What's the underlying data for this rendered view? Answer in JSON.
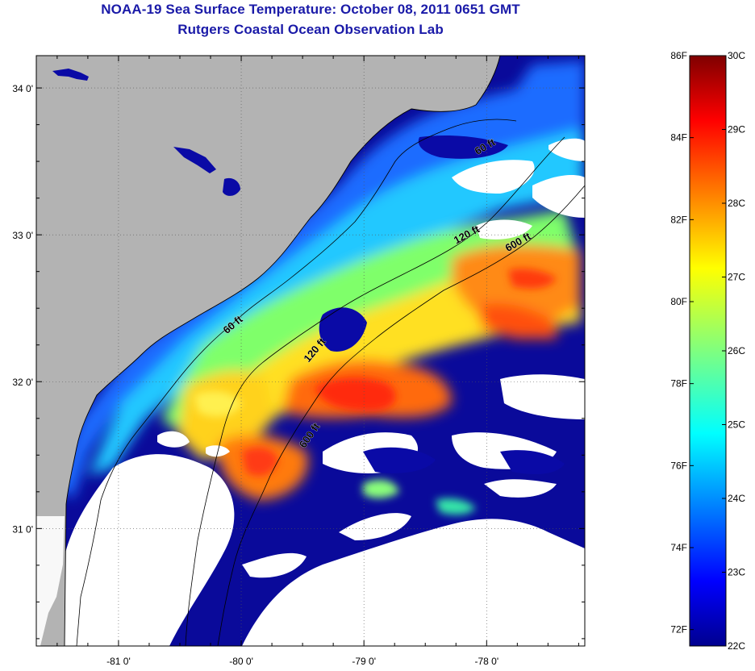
{
  "header": {
    "title": "NOAA-19 Sea Surface Temperature:  October 08, 2011 0651 GMT",
    "subtitle": "Rutgers Coastal Ocean Observation Lab"
  },
  "map": {
    "lon_range": [
      -81.67,
      -77.2
    ],
    "lat_range": [
      30.2,
      34.22
    ],
    "lon_ticks": [
      {
        "value": -81,
        "label": "-81 0'"
      },
      {
        "value": -80,
        "label": "-80 0'"
      },
      {
        "value": -79,
        "label": "-79 0'"
      },
      {
        "value": -78,
        "label": "-78 0'"
      }
    ],
    "lat_ticks": [
      {
        "value": 34,
        "label": "34 0'"
      },
      {
        "value": 33,
        "label": "33 0'"
      },
      {
        "value": 32,
        "label": "32 0'"
      },
      {
        "value": 31,
        "label": "31 0'"
      }
    ],
    "contour_labels": [
      {
        "text": "60 ft",
        "lon": -78.0,
        "lat": 33.58,
        "angle": -30
      },
      {
        "text": "120 ft",
        "lon": -78.15,
        "lat": 32.98,
        "angle": -28
      },
      {
        "text": "600 ft",
        "lon": -77.73,
        "lat": 32.93,
        "angle": -30
      },
      {
        "text": "60 ft",
        "lon": -80.05,
        "lat": 32.37,
        "angle": -40
      },
      {
        "text": "120 ft",
        "lon": -79.38,
        "lat": 32.2,
        "angle": -50
      },
      {
        "text": "600 ft",
        "lon": -79.42,
        "lat": 31.62,
        "angle": -55
      }
    ],
    "colors": {
      "land": "#b3b3b3",
      "cloud": "#ffffff"
    }
  },
  "colorbar": {
    "celsius_range": [
      22,
      30
    ],
    "celsius_labels": [
      "30C",
      "29C",
      "28C",
      "27C",
      "26C",
      "25C",
      "24C",
      "23C",
      "22C"
    ],
    "fahrenheit_labels": [
      "86F",
      "84F",
      "82F",
      "80F",
      "78F",
      "76F",
      "74F",
      "72F"
    ],
    "colormap": "jet"
  }
}
